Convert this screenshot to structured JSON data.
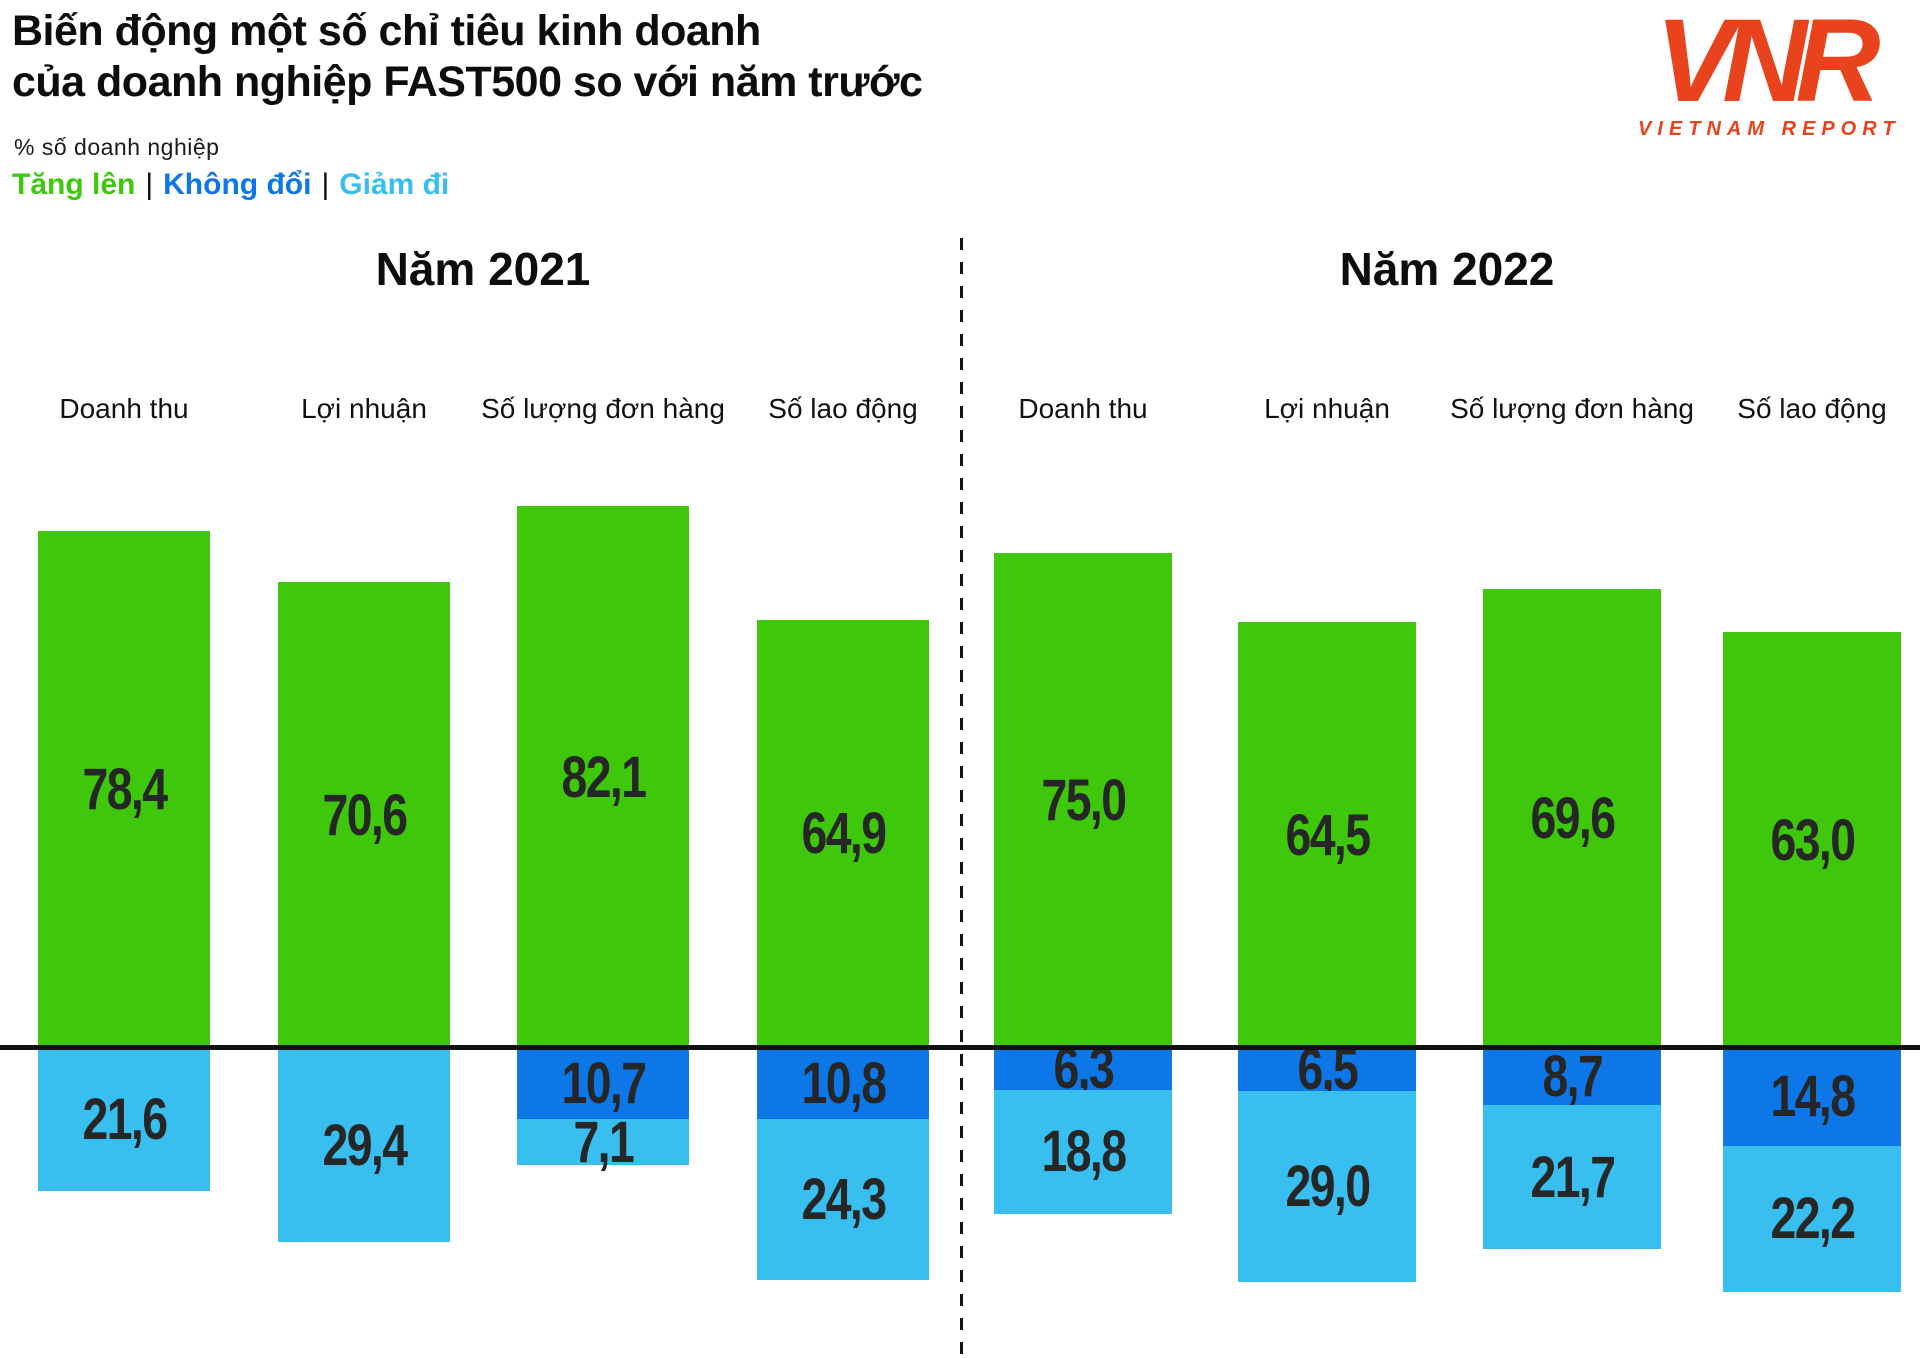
{
  "header": {
    "title_line1": "Biến động một số chỉ tiêu kinh doanh",
    "title_line2": "của doanh nghiệp FAST500 so với năm trước",
    "subtitle": "% số doanh nghiệp",
    "legend": {
      "separator": "|",
      "items": [
        {
          "key": "up",
          "label": "Tăng lên",
          "color": "#3EC70B"
        },
        {
          "key": "same",
          "label": "Không đổi",
          "color": "#0E77E8"
        },
        {
          "key": "down",
          "label": "Giảm đi",
          "color": "#38BFEF"
        }
      ]
    }
  },
  "logo": {
    "text": "VNR",
    "subtext": "VIETNAM REPORT",
    "color": "#E8431C"
  },
  "chart_data": {
    "type": "bar",
    "variant": "diverging-stacked-vertical",
    "unit": "% số doanh nghiệp",
    "decimal_separator": ",",
    "grid": false,
    "legend_position": "top-left",
    "series_colors": {
      "up": "#3EC70B",
      "same": "#0E77E8",
      "down": "#38BFEF"
    },
    "series_names": {
      "up": "Tăng lên",
      "same": "Không đổi",
      "down": "Giảm đi"
    },
    "axis": {
      "zero_baseline": true,
      "above_max": 82.1,
      "below_max": 37.0
    },
    "panels": [
      {
        "header": "Năm 2021",
        "categories": [
          "Doanh thu",
          "Lợi nhuận",
          "Số lượng đơn hàng",
          "Số lao động"
        ],
        "bars": [
          {
            "category": "Doanh thu",
            "up": {
              "value": 78.4,
              "label": "78,4"
            },
            "same": null,
            "down": {
              "value": 21.6,
              "label": "21,6"
            }
          },
          {
            "category": "Lợi nhuận",
            "up": {
              "value": 70.6,
              "label": "70,6"
            },
            "same": null,
            "down": {
              "value": 29.4,
              "label": "29,4"
            }
          },
          {
            "category": "Số lượng đơn hàng",
            "up": {
              "value": 82.1,
              "label": "82,1"
            },
            "same": {
              "value": 10.7,
              "label": "10,7"
            },
            "down": {
              "value": 7.1,
              "label": "7,1"
            }
          },
          {
            "category": "Số lao động",
            "up": {
              "value": 64.9,
              "label": "64,9"
            },
            "same": {
              "value": 10.8,
              "label": "10,8"
            },
            "down": {
              "value": 24.3,
              "label": "24,3"
            }
          }
        ]
      },
      {
        "header": "Năm 2022",
        "categories": [
          "Doanh thu",
          "Lợi nhuận",
          "Số lượng đơn hàng",
          "Số lao động"
        ],
        "bars": [
          {
            "category": "Doanh thu",
            "up": {
              "value": 75.0,
              "label": "75,0"
            },
            "same": {
              "value": 6.3,
              "label": "6,3"
            },
            "down": {
              "value": 18.8,
              "label": "18,8"
            }
          },
          {
            "category": "Lợi nhuận",
            "up": {
              "value": 64.5,
              "label": "64,5"
            },
            "same": {
              "value": 6.5,
              "label": "6,5"
            },
            "down": {
              "value": 29.0,
              "label": "29,0"
            }
          },
          {
            "category": "Số lượng đơn hàng",
            "up": {
              "value": 69.6,
              "label": "69,6"
            },
            "same": {
              "value": 8.7,
              "label": "8,7"
            },
            "down": {
              "value": 21.7,
              "label": "21,7"
            }
          },
          {
            "category": "Số lao động",
            "up": {
              "value": 63.0,
              "label": "63,0"
            },
            "same": {
              "value": 14.8,
              "label": "14,8"
            },
            "down": {
              "value": 22.2,
              "label": "22,2"
            }
          }
        ]
      }
    ]
  }
}
